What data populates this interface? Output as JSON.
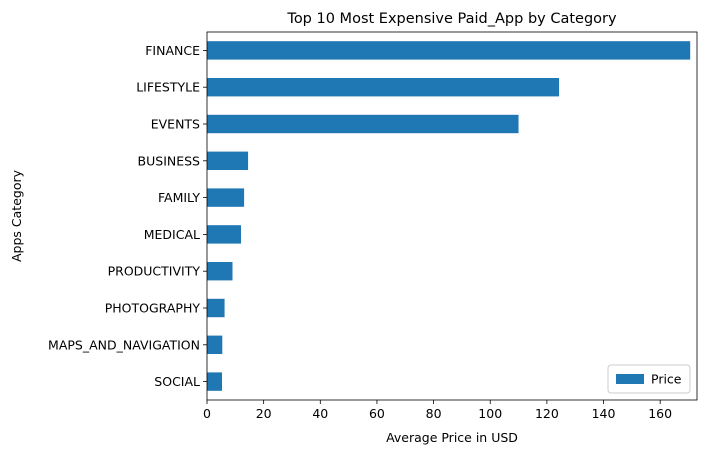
{
  "chart_data": {
    "type": "bar",
    "orientation": "horizontal",
    "title": "Top 10 Most Expensive Paid_App by Category",
    "xlabel": "Average Price in USD",
    "ylabel": "Apps Category",
    "categories": [
      "FINANCE",
      "LIFESTYLE",
      "EVENTS",
      "BUSINESS",
      "FAMILY",
      "MEDICAL",
      "PRODUCTIVITY",
      "PHOTOGRAPHY",
      "MAPS_AND_NAVIGATION",
      "SOCIAL"
    ],
    "series": [
      {
        "name": "Price",
        "color": "#1f77b4",
        "values": [
          170.6,
          124.3,
          109.99,
          14.5,
          13.1,
          12.0,
          9.0,
          6.2,
          5.4,
          5.3
        ]
      }
    ],
    "xlim": [
      0,
      173
    ],
    "xticks": [
      "0",
      "20",
      "40",
      "60",
      "80",
      "100",
      "120",
      "140",
      "160"
    ],
    "grid": false,
    "legend_position": "lower-right"
  }
}
